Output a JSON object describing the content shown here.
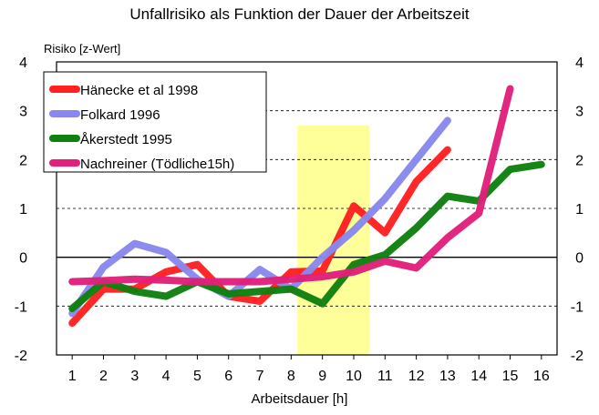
{
  "chart_data": {
    "type": "line",
    "title": "Unfallrisiko als Funktion der Dauer der Arbeitszeit",
    "ylabel": "Risiko [z-Wert]",
    "xlabel": "Arbeitsdauer [h]",
    "xlim": [
      0.5,
      16.5
    ],
    "ylim": [
      -2,
      4
    ],
    "x_ticks": [
      "1",
      "2",
      "3",
      "4",
      "5",
      "6",
      "7",
      "8",
      "9",
      "10",
      "11",
      "12",
      "13",
      "14",
      "15",
      "16"
    ],
    "y_ticks": [
      "-2",
      "-1",
      "0",
      "1",
      "2",
      "3",
      "4"
    ],
    "highlight": {
      "x_from": 8.2,
      "x_to": 10.5,
      "color": "#ffff99"
    },
    "legend_position": "top-left",
    "grid": "horizontal dashed",
    "series": [
      {
        "name": "Hänecke et al 1998",
        "color": "#ff2020",
        "points": [
          [
            1,
            -1.35
          ],
          [
            2,
            -0.65
          ],
          [
            3,
            -0.65
          ],
          [
            4,
            -0.3
          ],
          [
            5,
            -0.15
          ],
          [
            6,
            -0.8
          ],
          [
            7,
            -0.9
          ],
          [
            8,
            -0.3
          ],
          [
            9,
            -0.28
          ],
          [
            10,
            1.05
          ],
          [
            11,
            0.5
          ],
          [
            12,
            1.55
          ],
          [
            13,
            2.2
          ]
        ]
      },
      {
        "name": "Folkard 1996",
        "color": "#8888ee",
        "points": [
          [
            1,
            -1.15
          ],
          [
            2,
            -0.2
          ],
          [
            3,
            0.28
          ],
          [
            4,
            0.1
          ],
          [
            5,
            -0.45
          ],
          [
            6,
            -0.8
          ],
          [
            7,
            -0.25
          ],
          [
            8,
            -0.65
          ],
          [
            9,
            0.0
          ],
          [
            10,
            0.55
          ],
          [
            11,
            1.2
          ],
          [
            12,
            2.0
          ],
          [
            13,
            2.8
          ]
        ]
      },
      {
        "name": "Åkerstedt 1995",
        "color": "#108010",
        "points": [
          [
            1,
            -1.05
          ],
          [
            2,
            -0.5
          ],
          [
            3,
            -0.7
          ],
          [
            4,
            -0.8
          ],
          [
            5,
            -0.5
          ],
          [
            6,
            -0.75
          ],
          [
            7,
            -0.7
          ],
          [
            8,
            -0.65
          ],
          [
            9,
            -0.95
          ],
          [
            10,
            -0.15
          ],
          [
            11,
            0.05
          ],
          [
            12,
            0.6
          ],
          [
            13,
            1.25
          ],
          [
            14,
            1.15
          ],
          [
            15,
            1.8
          ],
          [
            16,
            1.9
          ]
        ]
      },
      {
        "name": "Nachreiner (Tödliche15h)",
        "color": "#e0207a",
        "points": [
          [
            1,
            -0.5
          ],
          [
            2,
            -0.48
          ],
          [
            3,
            -0.45
          ],
          [
            4,
            -0.47
          ],
          [
            5,
            -0.5
          ],
          [
            6,
            -0.5
          ],
          [
            7,
            -0.5
          ],
          [
            8,
            -0.45
          ],
          [
            9,
            -0.4
          ],
          [
            10,
            -0.3
          ],
          [
            11,
            -0.08
          ],
          [
            12,
            -0.22
          ],
          [
            13,
            0.4
          ],
          [
            14,
            0.9
          ],
          [
            15,
            3.45
          ]
        ]
      }
    ]
  }
}
